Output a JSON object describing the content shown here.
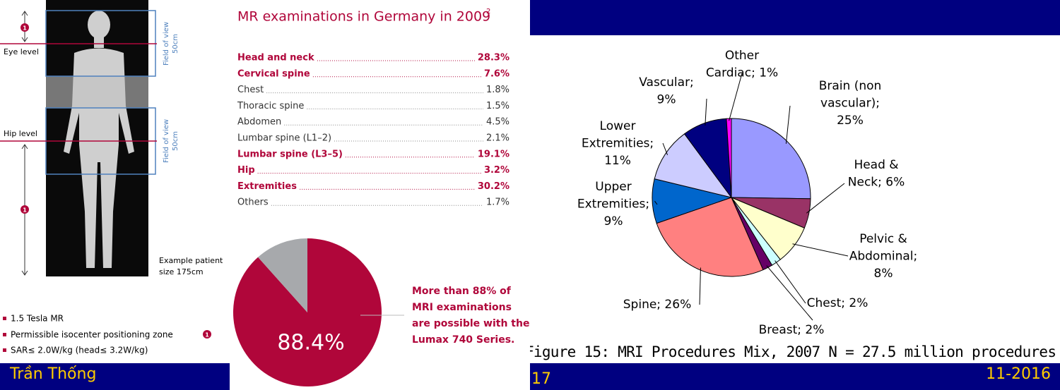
{
  "left_panel": {
    "eye_level": "Eye level",
    "hip_level": "Hip level",
    "fov_label": [
      "Field of view",
      "50cm"
    ],
    "marker": "1",
    "patient_note": [
      "Example patient",
      "size 175cm"
    ],
    "bullets": [
      "1.5 Tesla MR",
      "Permissible isocenter positioning zone",
      "SAR≤ 2.0W/kg (head≤ 3.2W/kg)"
    ]
  },
  "exam_list": {
    "title": "MR examinations in Germany in 2009",
    "title_note": "2",
    "items": [
      {
        "label": "Head and neck",
        "value": "28.3%",
        "highlight": true
      },
      {
        "label": "Cervical spine",
        "value": "7.6%",
        "highlight": true
      },
      {
        "label": "Chest",
        "value": "1.8%",
        "highlight": false
      },
      {
        "label": "Thoracic spine",
        "value": "1.5%",
        "highlight": false
      },
      {
        "label": "Abdomen",
        "value": "4.5%",
        "highlight": false
      },
      {
        "label": "Lumbar spine (L1–2)",
        "value": "2.1%",
        "highlight": false
      },
      {
        "label": "Lumbar spine (L3–5)",
        "value": "19.1%",
        "highlight": true
      },
      {
        "label": "Hip",
        "value": "3.2%",
        "highlight": true
      },
      {
        "label": "Extremities",
        "value": "30.2%",
        "highlight": true
      },
      {
        "label": "Others",
        "value": "1.7%",
        "highlight": false
      }
    ]
  },
  "chart_data": [
    {
      "type": "pie",
      "values": [
        88.4,
        11.6
      ],
      "value_labels": [
        "88.4%",
        null
      ],
      "colors": [
        "#b0063a",
        "#a7a9ac"
      ],
      "annotation": [
        "More than 88% of",
        "MRI examinations",
        "are possible with the",
        "Lumax 740 Series."
      ]
    },
    {
      "type": "pie",
      "title": "Figure 15: MRI Procedures Mix, 2007 N = 27.5 million procedures",
      "values": [
        25,
        6,
        8,
        2,
        2,
        26,
        9,
        11,
        9,
        1
      ],
      "value_labels": [
        "Brain (non\nvascular);\n25%",
        "Head &\nNeck; 6%",
        "Pelvic &\nAbdominal;\n8%",
        "Chest; 2%",
        "Breast; 2%",
        "Spine; 26%",
        "Upper\nExtremities;\n9%",
        "Lower\nExtremities;\n11%",
        "Vascular;\n9%",
        "Other\nCardiac; 1%"
      ],
      "colors": [
        "#9999ff",
        "#993366",
        "#ffffcc",
        "#ccffff",
        "#660066",
        "#ff8080",
        "#0066cc",
        "#ccccff",
        "#000080",
        "#ff00ff"
      ]
    }
  ],
  "footer": {
    "author": "Trần  Thống",
    "page": "17",
    "date": "11-2016"
  }
}
